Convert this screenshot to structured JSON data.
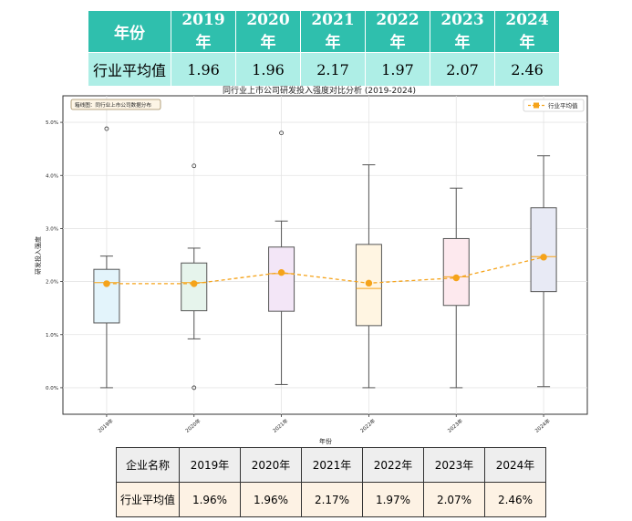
{
  "top_table": {
    "headers": [
      "年份",
      "2019 年",
      "2020 年",
      "2021 年",
      "2022 年",
      "2023 年",
      "2024 年"
    ],
    "row": [
      "行业平均值",
      "1.96",
      "1.96",
      "2.17",
      "1.97",
      "2.07",
      "2.46"
    ]
  },
  "bottom_table": {
    "headers": [
      "企业名称",
      "2019年",
      "2020年",
      "2021年",
      "2022年",
      "2023年",
      "2024年"
    ],
    "row": [
      "行业平均值",
      "1.96%",
      "1.96%",
      "2.17%",
      "1.97%",
      "2.07%",
      "2.46%"
    ]
  },
  "chart_data": {
    "type": "box",
    "title": "同行业上市公司研发投入强度对比分析 (2019-2024)",
    "xlabel": "年份",
    "ylabel": "研发投入强度",
    "categories": [
      "2019年",
      "2020年",
      "2021年",
      "2022年",
      "2023年",
      "2024年"
    ],
    "ylim": [
      -0.5,
      5.5
    ],
    "yticks": [
      0.0,
      1.0,
      2.0,
      3.0,
      4.0,
      5.0
    ],
    "ytick_labels": [
      "0.0%",
      "1.0%",
      "2.0%",
      "3.0%",
      "4.0%",
      "5.0%"
    ],
    "boxes": [
      {
        "whisker_low": 0.0,
        "q1": 1.22,
        "median": 1.98,
        "q3": 2.23,
        "whisker_high": 2.48,
        "fliers": [
          4.88
        ],
        "color": "#e3f4fb"
      },
      {
        "whisker_low": 0.92,
        "q1": 1.45,
        "median": 1.98,
        "q3": 2.35,
        "whisker_high": 2.63,
        "fliers": [
          0.0,
          4.18
        ],
        "color": "#e6f4ec"
      },
      {
        "whisker_low": 0.06,
        "q1": 1.44,
        "median": 2.15,
        "q3": 2.65,
        "whisker_high": 3.14,
        "fliers": [
          4.8
        ],
        "color": "#f3e6f7"
      },
      {
        "whisker_low": 0.0,
        "q1": 1.17,
        "median": 1.87,
        "q3": 2.7,
        "whisker_high": 4.2,
        "fliers": [],
        "color": "#fff5e2"
      },
      {
        "whisker_low": 0.0,
        "q1": 1.55,
        "median": 2.09,
        "q3": 2.81,
        "whisker_high": 3.76,
        "fliers": [],
        "color": "#fde9ee"
      },
      {
        "whisker_low": 0.02,
        "q1": 1.81,
        "median": 2.47,
        "q3": 3.39,
        "whisker_high": 4.37,
        "fliers": [],
        "color": "#e8eaf5"
      }
    ],
    "series": [
      {
        "name": "行业平均值",
        "values": [
          1.96,
          1.96,
          2.17,
          1.97,
          2.07,
          2.46
        ],
        "color": "#f5a31a"
      }
    ],
    "annotation": "箱线图：同行业上市公司数据分布",
    "legend_position": "top-right",
    "grid": true
  }
}
